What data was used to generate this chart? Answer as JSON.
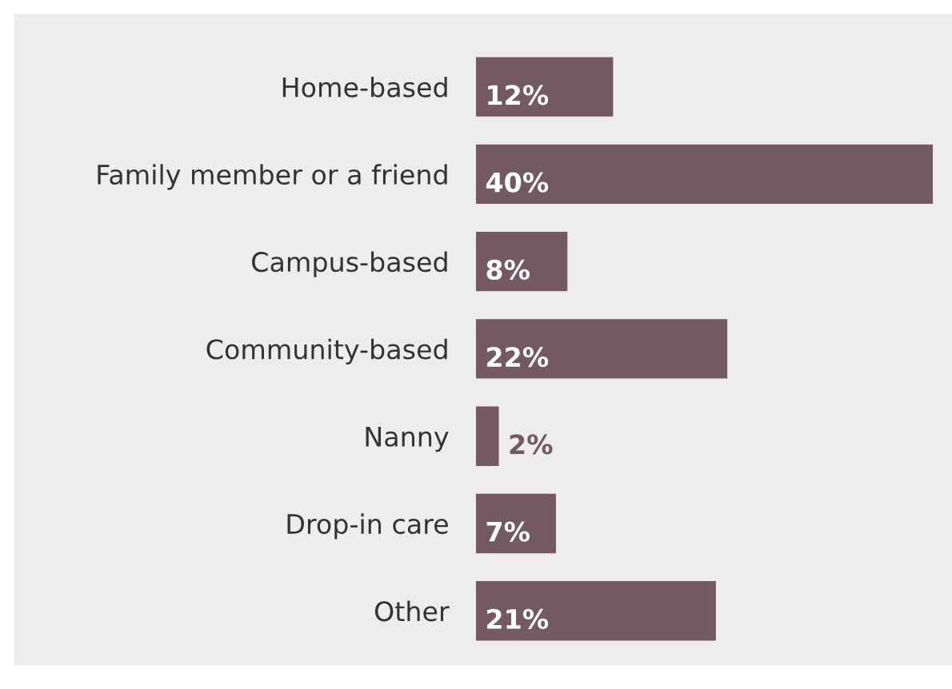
{
  "chart_data": {
    "type": "bar",
    "orientation": "horizontal",
    "categories": [
      "Home-based",
      "Family member or a friend",
      "Campus-based",
      "Community-based",
      "Nanny",
      "Drop-in care",
      "Other"
    ],
    "values": [
      12,
      40,
      8,
      22,
      2,
      7,
      21
    ],
    "value_labels": [
      "12%",
      "40%",
      "8%",
      "22%",
      "2%",
      "7%",
      "21%"
    ],
    "color": "#735a62",
    "tick_labels": "y"
  }
}
